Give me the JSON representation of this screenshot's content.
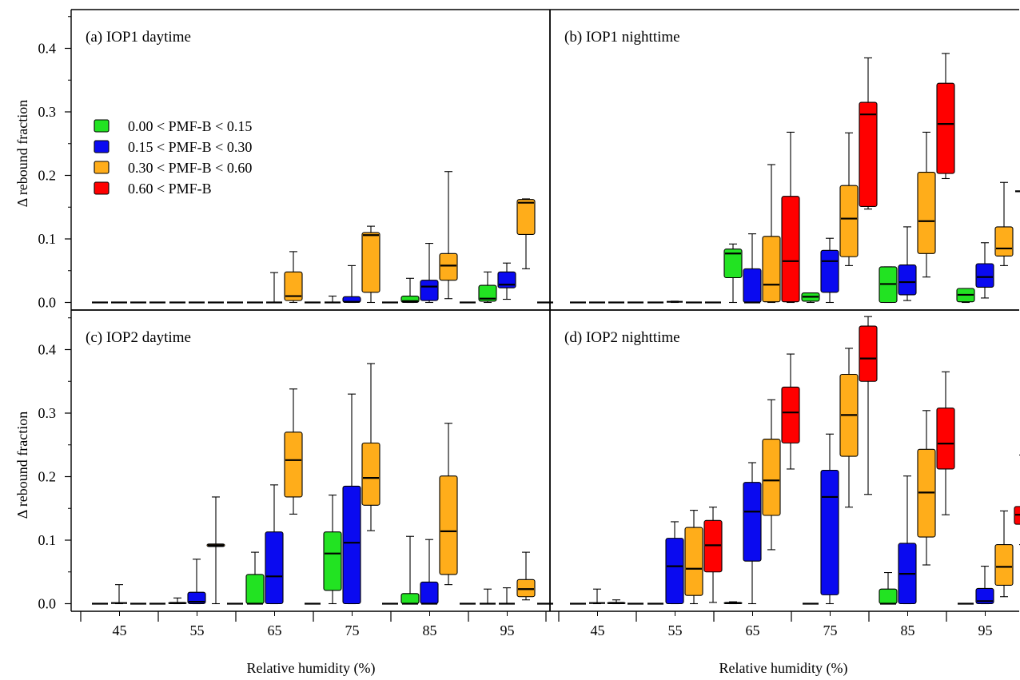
{
  "chart_data": {
    "type": "box",
    "xlabel": "Relative humidity (%)",
    "ylabel": "Δ rebound fraction",
    "x_categories": [
      "45",
      "55",
      "65",
      "75",
      "85",
      "95"
    ],
    "y_ticks": [
      "0.0",
      "0.1",
      "0.2",
      "0.3",
      "0.4"
    ],
    "ylim": [
      0.0,
      0.45
    ],
    "legend": {
      "placement": "upper-left of panel (a)",
      "entries": [
        {
          "label": "0.00 < PMF-B < 0.15",
          "color": "#22e322"
        },
        {
          "label": "0.15 < PMF-B < 0.30",
          "color": "#0a0af0"
        },
        {
          "label": "0.30 < PMF-B < 0.60",
          "color": "#ffad1a"
        },
        {
          "label": "0.60 < PMF-B",
          "color": "#ff0000"
        }
      ]
    },
    "panels": [
      {
        "title": "(a) IOP1  daytime",
        "boxes": [
          {
            "rh": "45",
            "group": 0,
            "wlo": 0,
            "q1": 0,
            "med": 0,
            "q3": 0,
            "whi": 0
          },
          {
            "rh": "45",
            "group": 1,
            "wlo": 0,
            "q1": 0,
            "med": 0,
            "q3": 0,
            "whi": 0
          },
          {
            "rh": "45",
            "group": 2,
            "wlo": 0,
            "q1": 0,
            "med": 0,
            "q3": 0,
            "whi": 0
          },
          {
            "rh": "45",
            "group": 3,
            "wlo": 0,
            "q1": 0,
            "med": 0,
            "q3": 0,
            "whi": 0
          },
          {
            "rh": "55",
            "group": 0,
            "wlo": 0,
            "q1": 0,
            "med": 0,
            "q3": 0,
            "whi": 0
          },
          {
            "rh": "55",
            "group": 1,
            "wlo": 0,
            "q1": 0,
            "med": 0,
            "q3": 0,
            "whi": 0
          },
          {
            "rh": "55",
            "group": 2,
            "wlo": 0,
            "q1": 0,
            "med": 0,
            "q3": 0,
            "whi": 0
          },
          {
            "rh": "55",
            "group": 3,
            "wlo": 0,
            "q1": 0,
            "med": 0,
            "q3": 0,
            "whi": 0
          },
          {
            "rh": "65",
            "group": 0,
            "wlo": 0,
            "q1": 0,
            "med": 0,
            "q3": 0,
            "whi": 0
          },
          {
            "rh": "65",
            "group": 1,
            "wlo": 0,
            "q1": 0,
            "med": 0,
            "q3": 0,
            "whi": 0.047
          },
          {
            "rh": "65",
            "group": 2,
            "wlo": 0,
            "q1": 0.003,
            "med": 0.01,
            "q3": 0.048,
            "whi": 0.08
          },
          {
            "rh": "65",
            "group": 3,
            "wlo": 0,
            "q1": 0,
            "med": 0,
            "q3": 0,
            "whi": 0
          },
          {
            "rh": "75",
            "group": 0,
            "wlo": 0,
            "q1": 0,
            "med": 0,
            "q3": 0,
            "whi": 0.01
          },
          {
            "rh": "75",
            "group": 1,
            "wlo": 0,
            "q1": 0,
            "med": 0.001,
            "q3": 0.009,
            "whi": 0.058
          },
          {
            "rh": "75",
            "group": 2,
            "wlo": 0,
            "q1": 0.016,
            "med": 0.106,
            "q3": 0.11,
            "whi": 0.12
          },
          {
            "rh": "75",
            "group": 3,
            "wlo": 0,
            "q1": 0,
            "med": 0,
            "q3": 0,
            "whi": 0
          },
          {
            "rh": "85",
            "group": 0,
            "wlo": 0,
            "q1": 0,
            "med": 0.002,
            "q3": 0.01,
            "whi": 0.038
          },
          {
            "rh": "85",
            "group": 1,
            "wlo": 0,
            "q1": 0.003,
            "med": 0.025,
            "q3": 0.035,
            "whi": 0.093
          },
          {
            "rh": "85",
            "group": 2,
            "wlo": 0.006,
            "q1": 0.035,
            "med": 0.058,
            "q3": 0.077,
            "whi": 0.206
          },
          {
            "rh": "85",
            "group": 3,
            "wlo": 0,
            "q1": 0,
            "med": 0,
            "q3": 0,
            "whi": 0
          },
          {
            "rh": "95",
            "group": 0,
            "wlo": 0,
            "q1": 0.002,
            "med": 0.006,
            "q3": 0.027,
            "whi": 0.048
          },
          {
            "rh": "95",
            "group": 1,
            "wlo": 0.005,
            "q1": 0.023,
            "med": 0.028,
            "q3": 0.048,
            "whi": 0.062
          },
          {
            "rh": "95",
            "group": 2,
            "wlo": 0.053,
            "q1": 0.107,
            "med": 0.157,
            "q3": 0.162,
            "whi": 0.163
          },
          {
            "rh": "95",
            "group": 3,
            "wlo": 0,
            "q1": 0,
            "med": 0,
            "q3": 0,
            "whi": 0
          }
        ]
      },
      {
        "title": "(b) IOP1  nighttime",
        "boxes": [
          {
            "rh": "45",
            "group": 0,
            "wlo": 0,
            "q1": 0,
            "med": 0,
            "q3": 0,
            "whi": 0
          },
          {
            "rh": "45",
            "group": 1,
            "wlo": 0,
            "q1": 0,
            "med": 0,
            "q3": 0,
            "whi": 0
          },
          {
            "rh": "45",
            "group": 2,
            "wlo": 0,
            "q1": 0,
            "med": 0,
            "q3": 0,
            "whi": 0
          },
          {
            "rh": "45",
            "group": 3,
            "wlo": 0,
            "q1": 0,
            "med": 0,
            "q3": 0,
            "whi": 0
          },
          {
            "rh": "55",
            "group": 0,
            "wlo": 0,
            "q1": 0,
            "med": 0,
            "q3": 0,
            "whi": 0
          },
          {
            "rh": "55",
            "group": 1,
            "wlo": 0,
            "q1": 0,
            "med": 0.001,
            "q3": 0.001,
            "whi": 0.002
          },
          {
            "rh": "55",
            "group": 2,
            "wlo": 0,
            "q1": 0,
            "med": 0,
            "q3": 0,
            "whi": 0
          },
          {
            "rh": "55",
            "group": 3,
            "wlo": 0,
            "q1": 0,
            "med": 0,
            "q3": 0,
            "whi": 0
          },
          {
            "rh": "65",
            "group": 0,
            "wlo": 0,
            "q1": 0.039,
            "med": 0.077,
            "q3": 0.084,
            "whi": 0.092
          },
          {
            "rh": "65",
            "group": 1,
            "wlo": 0,
            "q1": 0,
            "med": 0,
            "q3": 0.053,
            "whi": 0.108
          },
          {
            "rh": "65",
            "group": 2,
            "wlo": 0,
            "q1": 0.001,
            "med": 0.028,
            "q3": 0.104,
            "whi": 0.217
          },
          {
            "rh": "65",
            "group": 3,
            "wlo": 0,
            "q1": 0.001,
            "med": 0.065,
            "q3": 0.167,
            "whi": 0.268
          },
          {
            "rh": "75",
            "group": 0,
            "wlo": 0,
            "q1": 0.002,
            "med": 0.009,
            "q3": 0.015,
            "whi": 0.015
          },
          {
            "rh": "75",
            "group": 1,
            "wlo": 0,
            "q1": 0.016,
            "med": 0.065,
            "q3": 0.082,
            "whi": 0.101
          },
          {
            "rh": "75",
            "group": 2,
            "wlo": 0.058,
            "q1": 0.072,
            "med": 0.132,
            "q3": 0.184,
            "whi": 0.267
          },
          {
            "rh": "75",
            "group": 3,
            "wlo": 0.147,
            "q1": 0.151,
            "med": 0.296,
            "q3": 0.315,
            "whi": 0.385
          },
          {
            "rh": "85",
            "group": 0,
            "wlo": 0,
            "q1": 0,
            "med": 0.029,
            "q3": 0.056,
            "whi": 0.056
          },
          {
            "rh": "85",
            "group": 1,
            "wlo": 0.003,
            "q1": 0.012,
            "med": 0.032,
            "q3": 0.059,
            "whi": 0.119
          },
          {
            "rh": "85",
            "group": 2,
            "wlo": 0.04,
            "q1": 0.077,
            "med": 0.128,
            "q3": 0.205,
            "whi": 0.268
          },
          {
            "rh": "85",
            "group": 3,
            "wlo": 0.195,
            "q1": 0.203,
            "med": 0.281,
            "q3": 0.345,
            "whi": 0.392
          },
          {
            "rh": "95",
            "group": 0,
            "wlo": 0,
            "q1": 0.001,
            "med": 0.012,
            "q3": 0.022,
            "whi": 0.022
          },
          {
            "rh": "95",
            "group": 1,
            "wlo": 0.007,
            "q1": 0.024,
            "med": 0.04,
            "q3": 0.061,
            "whi": 0.094
          },
          {
            "rh": "95",
            "group": 2,
            "wlo": 0.058,
            "q1": 0.073,
            "med": 0.085,
            "q3": 0.119,
            "whi": 0.189
          },
          {
            "rh": "95",
            "group": 3,
            "wlo": 0.175,
            "q1": 0.175,
            "med": 0.175,
            "q3": 0.175,
            "whi": 0.175
          }
        ]
      },
      {
        "title": "(c) IOP2  daytime",
        "boxes": [
          {
            "rh": "45",
            "group": 0,
            "wlo": 0,
            "q1": 0,
            "med": 0,
            "q3": 0,
            "whi": 0
          },
          {
            "rh": "45",
            "group": 1,
            "wlo": 0,
            "q1": 0,
            "med": 0.001,
            "q3": 0.001,
            "whi": 0.03
          },
          {
            "rh": "45",
            "group": 2,
            "wlo": 0,
            "q1": 0,
            "med": 0,
            "q3": 0,
            "whi": 0
          },
          {
            "rh": "45",
            "group": 3,
            "wlo": 0,
            "q1": 0,
            "med": 0,
            "q3": 0,
            "whi": 0
          },
          {
            "rh": "55",
            "group": 0,
            "wlo": 0,
            "q1": 0,
            "med": 0.001,
            "q3": 0.002,
            "whi": 0.009
          },
          {
            "rh": "55",
            "group": 1,
            "wlo": 0,
            "q1": 0,
            "med": 0.003,
            "q3": 0.018,
            "whi": 0.07
          },
          {
            "rh": "55",
            "group": 2,
            "wlo": 0,
            "q1": 0.09,
            "med": 0.092,
            "q3": 0.094,
            "whi": 0.168
          },
          {
            "rh": "55",
            "group": 3,
            "wlo": 0,
            "q1": 0,
            "med": 0,
            "q3": 0,
            "whi": 0
          },
          {
            "rh": "65",
            "group": 0,
            "wlo": 0,
            "q1": 0,
            "med": 0,
            "q3": 0.046,
            "whi": 0.081
          },
          {
            "rh": "65",
            "group": 1,
            "wlo": 0,
            "q1": 0,
            "med": 0.043,
            "q3": 0.113,
            "whi": 0.187
          },
          {
            "rh": "65",
            "group": 2,
            "wlo": 0.141,
            "q1": 0.168,
            "med": 0.226,
            "q3": 0.27,
            "whi": 0.338
          },
          {
            "rh": "65",
            "group": 3,
            "wlo": 0,
            "q1": 0,
            "med": 0,
            "q3": 0,
            "whi": 0
          },
          {
            "rh": "75",
            "group": 0,
            "wlo": 0,
            "q1": 0.021,
            "med": 0.079,
            "q3": 0.113,
            "whi": 0.171
          },
          {
            "rh": "75",
            "group": 1,
            "wlo": 0,
            "q1": 0,
            "med": 0.096,
            "q3": 0.185,
            "whi": 0.33
          },
          {
            "rh": "75",
            "group": 2,
            "wlo": 0.115,
            "q1": 0.155,
            "med": 0.198,
            "q3": 0.253,
            "whi": 0.378
          },
          {
            "rh": "75",
            "group": 3,
            "wlo": 0,
            "q1": 0,
            "med": 0,
            "q3": 0,
            "whi": 0
          },
          {
            "rh": "85",
            "group": 0,
            "wlo": 0,
            "q1": 0,
            "med": 0,
            "q3": 0.016,
            "whi": 0.106
          },
          {
            "rh": "85",
            "group": 1,
            "wlo": 0,
            "q1": 0,
            "med": 0,
            "q3": 0.034,
            "whi": 0.101
          },
          {
            "rh": "85",
            "group": 2,
            "wlo": 0.03,
            "q1": 0.046,
            "med": 0.114,
            "q3": 0.201,
            "whi": 0.284
          },
          {
            "rh": "85",
            "group": 3,
            "wlo": 0,
            "q1": 0,
            "med": 0,
            "q3": 0,
            "whi": 0
          },
          {
            "rh": "95",
            "group": 0,
            "wlo": 0,
            "q1": 0,
            "med": 0,
            "q3": 0,
            "whi": 0.023
          },
          {
            "rh": "95",
            "group": 1,
            "wlo": 0,
            "q1": 0,
            "med": 0,
            "q3": 0,
            "whi": 0.025
          },
          {
            "rh": "95",
            "group": 2,
            "wlo": 0.006,
            "q1": 0.011,
            "med": 0.023,
            "q3": 0.038,
            "whi": 0.081
          },
          {
            "rh": "95",
            "group": 3,
            "wlo": 0,
            "q1": 0,
            "med": 0,
            "q3": 0,
            "whi": 0
          }
        ]
      },
      {
        "title": "(d) IOP2  nighttime",
        "boxes": [
          {
            "rh": "45",
            "group": 0,
            "wlo": 0,
            "q1": 0,
            "med": 0,
            "q3": 0,
            "whi": 0
          },
          {
            "rh": "45",
            "group": 1,
            "wlo": 0,
            "q1": 0,
            "med": 0.001,
            "q3": 0.001,
            "whi": 0.023
          },
          {
            "rh": "45",
            "group": 2,
            "wlo": 0,
            "q1": 0,
            "med": 0.001,
            "q3": 0.002,
            "whi": 0.006
          },
          {
            "rh": "45",
            "group": 3,
            "wlo": 0,
            "q1": 0,
            "med": 0,
            "q3": 0,
            "whi": 0
          },
          {
            "rh": "55",
            "group": 0,
            "wlo": 0,
            "q1": 0,
            "med": 0,
            "q3": 0,
            "whi": 0
          },
          {
            "rh": "55",
            "group": 1,
            "wlo": 0,
            "q1": 0,
            "med": 0.059,
            "q3": 0.103,
            "whi": 0.129
          },
          {
            "rh": "55",
            "group": 2,
            "wlo": 0,
            "q1": 0.013,
            "med": 0.055,
            "q3": 0.12,
            "whi": 0.147
          },
          {
            "rh": "55",
            "group": 3,
            "wlo": 0.002,
            "q1": 0.05,
            "med": 0.092,
            "q3": 0.131,
            "whi": 0.152
          },
          {
            "rh": "65",
            "group": 0,
            "wlo": 0,
            "q1": 0,
            "med": 0.001,
            "q3": 0.002,
            "whi": 0.003
          },
          {
            "rh": "65",
            "group": 1,
            "wlo": 0,
            "q1": 0.067,
            "med": 0.145,
            "q3": 0.191,
            "whi": 0.222
          },
          {
            "rh": "65",
            "group": 2,
            "wlo": 0.085,
            "q1": 0.139,
            "med": 0.194,
            "q3": 0.259,
            "whi": 0.321
          },
          {
            "rh": "65",
            "group": 3,
            "wlo": 0.212,
            "q1": 0.253,
            "med": 0.301,
            "q3": 0.341,
            "whi": 0.393
          },
          {
            "rh": "75",
            "group": 0,
            "wlo": 0,
            "q1": 0,
            "med": 0,
            "q3": 0,
            "whi": 0
          },
          {
            "rh": "75",
            "group": 1,
            "wlo": 0,
            "q1": 0.014,
            "med": 0.168,
            "q3": 0.21,
            "whi": 0.267
          },
          {
            "rh": "75",
            "group": 2,
            "wlo": 0.152,
            "q1": 0.232,
            "med": 0.297,
            "q3": 0.361,
            "whi": 0.402
          },
          {
            "rh": "75",
            "group": 3,
            "wlo": 0.172,
            "q1": 0.35,
            "med": 0.386,
            "q3": 0.437,
            "whi": 0.452
          },
          {
            "rh": "85",
            "group": 0,
            "wlo": 0,
            "q1": 0,
            "med": 0,
            "q3": 0.023,
            "whi": 0.049
          },
          {
            "rh": "85",
            "group": 1,
            "wlo": 0,
            "q1": 0,
            "med": 0.047,
            "q3": 0.095,
            "whi": 0.201
          },
          {
            "rh": "85",
            "group": 2,
            "wlo": 0.061,
            "q1": 0.105,
            "med": 0.175,
            "q3": 0.243,
            "whi": 0.304
          },
          {
            "rh": "85",
            "group": 3,
            "wlo": 0.14,
            "q1": 0.212,
            "med": 0.252,
            "q3": 0.308,
            "whi": 0.365
          },
          {
            "rh": "95",
            "group": 0,
            "wlo": 0,
            "q1": 0,
            "med": 0,
            "q3": 0,
            "whi": 0
          },
          {
            "rh": "95",
            "group": 1,
            "wlo": 0,
            "q1": 0,
            "med": 0.004,
            "q3": 0.024,
            "whi": 0.059
          },
          {
            "rh": "95",
            "group": 2,
            "wlo": 0.011,
            "q1": 0.029,
            "med": 0.058,
            "q3": 0.093,
            "whi": 0.146
          },
          {
            "rh": "95",
            "group": 3,
            "wlo": 0.093,
            "q1": 0.125,
            "med": 0.14,
            "q3": 0.153,
            "whi": 0.234
          }
        ]
      }
    ]
  }
}
